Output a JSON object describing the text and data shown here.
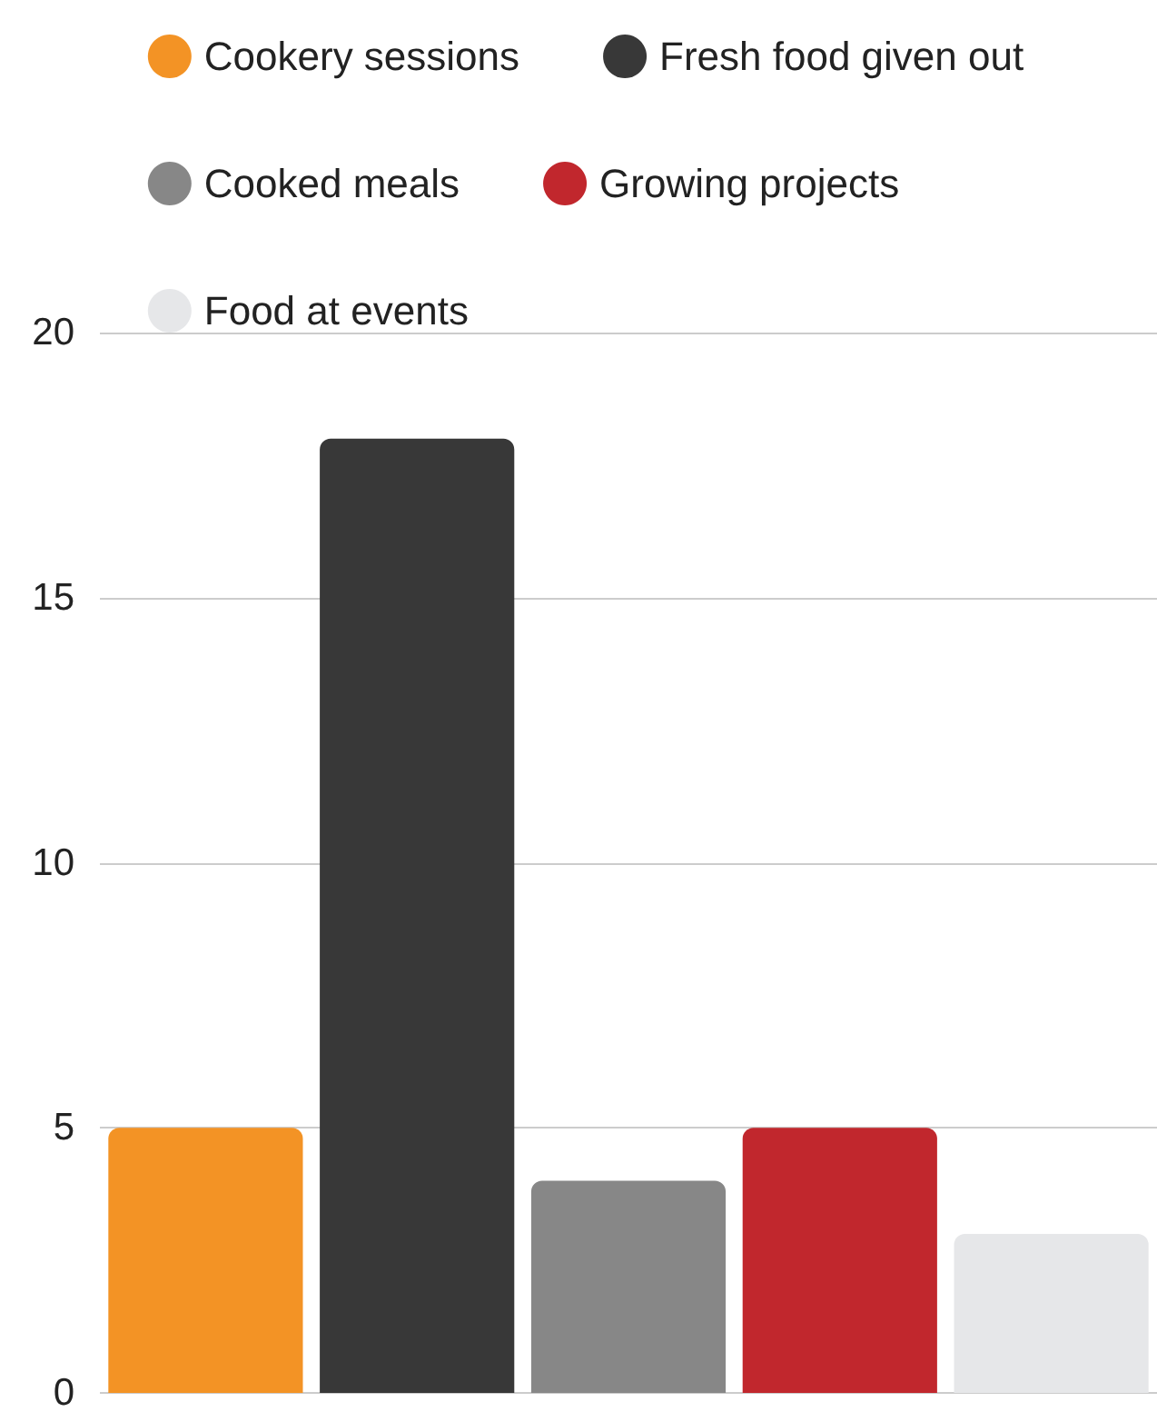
{
  "chart_data": {
    "type": "bar",
    "categories": [
      null,
      null,
      null,
      null,
      null
    ],
    "series": [
      {
        "name": "Cookery sessions",
        "color": "#f39325",
        "values": [
          5,
          null,
          null,
          null,
          null
        ]
      },
      {
        "name": "Fresh food given out",
        "color": "#383838",
        "values": [
          null,
          18,
          null,
          null,
          null
        ]
      },
      {
        "name": "Cooked meals",
        "color": "#878787",
        "values": [
          null,
          null,
          4,
          null,
          null
        ]
      },
      {
        "name": "Growing projects",
        "color": "#c1272d",
        "values": [
          null,
          null,
          null,
          5,
          null
        ]
      },
      {
        "name": "Food at events",
        "color": "#e6e7e9",
        "values": [
          null,
          null,
          null,
          null,
          3
        ]
      }
    ],
    "ylim": [
      0,
      20
    ],
    "yticks": [
      0,
      5,
      10,
      15,
      20
    ],
    "grid": "y",
    "legend": "top"
  }
}
